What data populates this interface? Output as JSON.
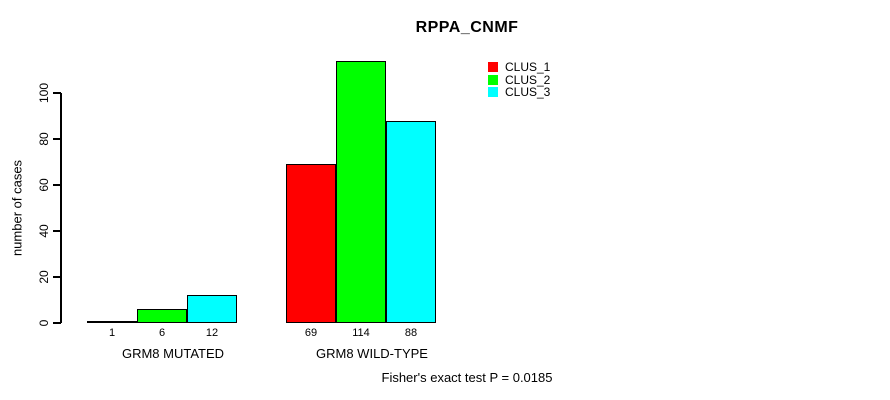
{
  "title": "RPPA_CNMF",
  "y_axis": {
    "label": "number of cases",
    "ticks": [
      0,
      20,
      40,
      60,
      80,
      100
    ]
  },
  "legend": [
    {
      "label": "CLUS_1",
      "color": "#ff0000"
    },
    {
      "label": "CLUS_2",
      "color": "#00ff00"
    },
    {
      "label": "CLUS_3",
      "color": "#00ffff"
    }
  ],
  "annotation": "Fisher's exact test P = 0.0185",
  "chart_data": {
    "type": "bar",
    "title": "RPPA_CNMF",
    "xlabel": "",
    "ylabel": "number of cases",
    "ylim": [
      0,
      114
    ],
    "yticks": [
      0,
      20,
      40,
      60,
      80,
      100
    ],
    "grid": false,
    "legend_position": "top-right",
    "categories": [
      "GRM8 MUTATED",
      "GRM8 WILD-TYPE"
    ],
    "series": [
      {
        "name": "CLUS_1",
        "color": "#ff0000",
        "values": [
          1,
          69
        ]
      },
      {
        "name": "CLUS_2",
        "color": "#00ff00",
        "values": [
          6,
          114
        ]
      },
      {
        "name": "CLUS_3",
        "color": "#00ffff",
        "values": [
          12,
          88
        ]
      }
    ],
    "bar_value_labels": [
      [
        1,
        6,
        12
      ],
      [
        69,
        114,
        88
      ]
    ],
    "annotation": "Fisher's exact test P = 0.0185"
  }
}
